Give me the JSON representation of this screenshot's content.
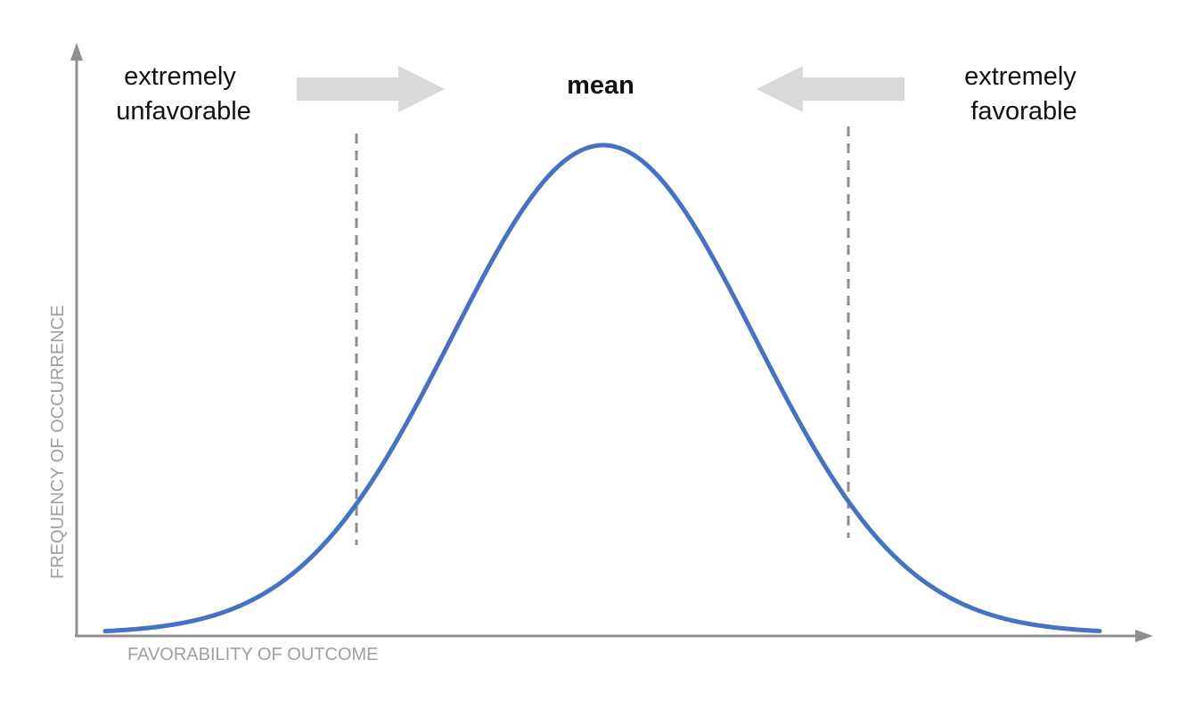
{
  "diagram": {
    "labels": {
      "left_line1": "extremely",
      "left_line2": "unfavorable",
      "center": "mean",
      "right_line1": "extremely",
      "right_line2": "favorable"
    },
    "axes": {
      "x_label": "FAVORABILITY OF OUTCOME",
      "y_label": "FREQUENCY OF OCCURRENCE"
    },
    "curve": {
      "type": "normal-distribution"
    },
    "colors": {
      "curve": "#4472c4",
      "axes": "#8f8f8f",
      "axis_labels": "#a0a0a0",
      "arrows": "#d9d9d9",
      "text": "#111111"
    }
  }
}
